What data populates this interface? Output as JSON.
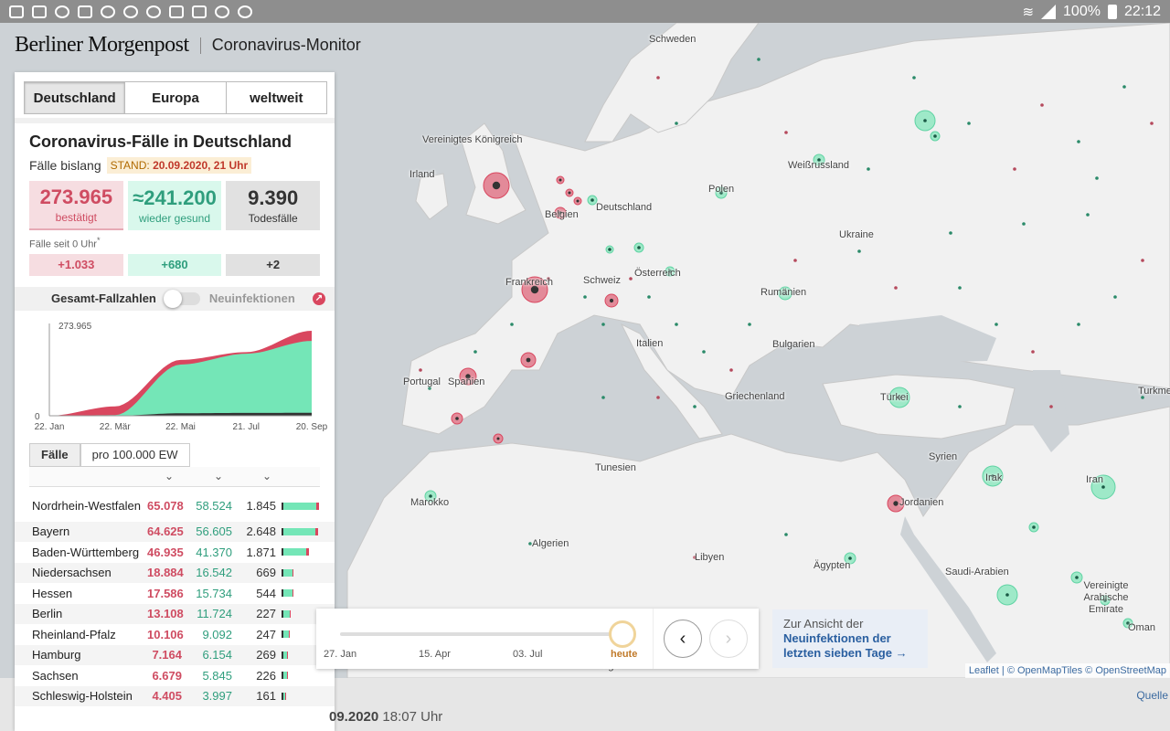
{
  "status_bar": {
    "battery": "100%",
    "time": "22:12"
  },
  "header": {
    "brand": "Berliner Morgenpost",
    "title": "Coronavirus-Monitor"
  },
  "region_tabs": [
    "Deutschland",
    "Europa",
    "weltweit"
  ],
  "summary": {
    "title": "Coronavirus-Fälle in Deutschland",
    "subtitle": "Fälle bislang",
    "stand_prefix": "STAND:",
    "stand_value": "20.09.2020, 21 Uhr",
    "confirmed": "273.965",
    "confirmed_label": "bestätigt",
    "recovered": "≈241.200",
    "recovered_label": "wieder gesund",
    "deaths": "9.390",
    "deaths_label": "Todesfälle",
    "since_label": "Fälle seit 0 Uhr",
    "since_mark": "*",
    "delta_confirmed": "+1.033",
    "delta_recovered": "+680",
    "delta_deaths": "+2"
  },
  "toggle": {
    "left": "Gesamt-Fallzahlen",
    "right": "Neuinfektionen",
    "info": "↗"
  },
  "chart_data": {
    "type": "area",
    "x": [
      "22. Jan",
      "22. Mär",
      "22. Mai",
      "21. Jul",
      "20. Sep"
    ],
    "ymax_label": "273.965",
    "ymin_label": "0",
    "ylim": [
      0,
      273965
    ],
    "series": [
      {
        "name": "wieder gesund",
        "values": [
          0,
          2000,
          165000,
          200000,
          241200
        ]
      },
      {
        "name": "bestätigt",
        "values": [
          0,
          30000,
          180000,
          205000,
          273965
        ]
      },
      {
        "name": "Todesfälle",
        "values": [
          0,
          100,
          8200,
          9100,
          9390
        ]
      }
    ],
    "colors": {
      "recovered": "#74e6b7",
      "confirmed": "#d9475f",
      "deaths": "#333333"
    }
  },
  "table_tabs": [
    "Fälle",
    "pro 100.000 EW"
  ],
  "table": [
    {
      "name": "Nordrhein-Westfalen",
      "c": "65.078",
      "r": "58.524",
      "d": "1.845",
      "cv": 65078,
      "rv": 58524,
      "dv": 1845
    },
    {
      "name": "Bayern",
      "c": "64.625",
      "r": "56.605",
      "d": "2.648",
      "cv": 64625,
      "rv": 56605,
      "dv": 2648
    },
    {
      "name": "Baden-Württemberg",
      "c": "46.935",
      "r": "41.370",
      "d": "1.871",
      "cv": 46935,
      "rv": 41370,
      "dv": 1871
    },
    {
      "name": "Niedersachsen",
      "c": "18.884",
      "r": "16.542",
      "d": "669",
      "cv": 18884,
      "rv": 16542,
      "dv": 669
    },
    {
      "name": "Hessen",
      "c": "17.586",
      "r": "15.734",
      "d": "544",
      "cv": 17586,
      "rv": 15734,
      "dv": 544
    },
    {
      "name": "Berlin",
      "c": "13.108",
      "r": "11.724",
      "d": "227",
      "cv": 13108,
      "rv": 11724,
      "dv": 227
    },
    {
      "name": "Rheinland-Pfalz",
      "c": "10.106",
      "r": "9.092",
      "d": "247",
      "cv": 10106,
      "rv": 9092,
      "dv": 247
    },
    {
      "name": "Hamburg",
      "c": "7.164",
      "r": "6.154",
      "d": "269",
      "cv": 7164,
      "rv": 6154,
      "dv": 269
    },
    {
      "name": "Sachsen",
      "c": "6.679",
      "r": "5.845",
      "d": "226",
      "cv": 6679,
      "rv": 5845,
      "dv": 226
    },
    {
      "name": "Schleswig-Holstein",
      "c": "4.405",
      "r": "3.997",
      "d": "161",
      "cv": 4405,
      "rv": 3997,
      "dv": 161
    }
  ],
  "timeline": {
    "labels": [
      "27. Jan",
      "15. Apr",
      "03. Jul",
      "heute"
    ],
    "position": 1.0
  },
  "link_card": {
    "line1": "Zur Ansicht der",
    "line2": "Neuinfektionen der",
    "line3": "letzten sieben Tage →"
  },
  "map": {
    "labels": [
      "Schweden",
      "Vereinigtes Königreich",
      "Irland",
      "Weißrussland",
      "Polen",
      "Deutschland",
      "Belgien",
      "Ukraine",
      "Frankreich",
      "Schweiz",
      "Österreich",
      "Rumänien",
      "Italien",
      "Bulgarien",
      "Portugal",
      "Spanien",
      "Griechenland",
      "Türkei",
      "Tunesien",
      "Syrien",
      "Irak",
      "Iran",
      "Marokko",
      "Algerien",
      "Libyen",
      "Ägypten",
      "Jordanien",
      "Saudi-Arabien",
      "Vereinigte Arabische Emirate",
      "Oman",
      "Turkmenistan",
      "Niger"
    ],
    "attribution_leaflet": "Leaflet",
    "attribution_rest": " | © OpenMapTiles © OpenStreetMap"
  },
  "quelle": "Quelle",
  "footer_date_bold": "09.2020",
  "footer_time": "18:07 Uhr"
}
